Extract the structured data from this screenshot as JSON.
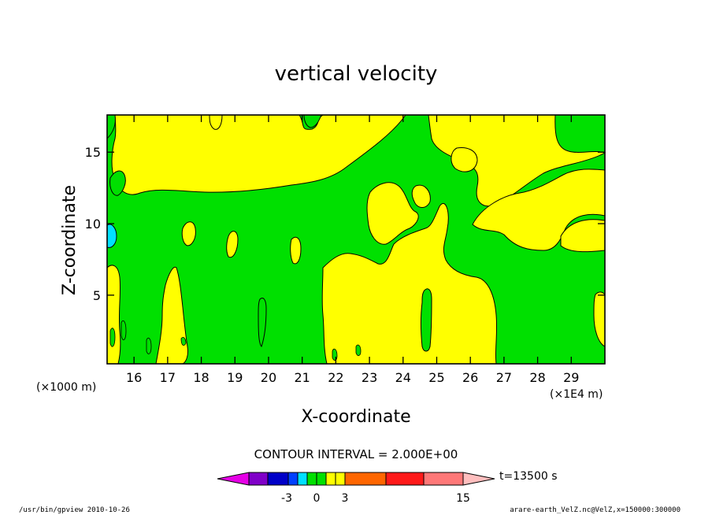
{
  "chart_data": {
    "type": "heatmap",
    "title": "vertical velocity",
    "xlabel": "X-coordinate",
    "ylabel": "Z-coordinate",
    "x_units_left": "(×1000 m)",
    "x_units_right": "(×1E4 m)",
    "xlim": [
      15.2,
      30.0
    ],
    "ylim": [
      0.2,
      17.6
    ],
    "x_ticks": [
      "16",
      "17",
      "18",
      "19",
      "20",
      "21",
      "22",
      "23",
      "24",
      "25",
      "26",
      "27",
      "28",
      "29"
    ],
    "y_ticks": [
      "5",
      "10",
      "15"
    ],
    "contour_interval_text": "CONTOUR INTERVAL = 2.000E+00",
    "time_label": "t=13500 s",
    "colorbar_labels": [
      "-3",
      "0",
      "3",
      "15"
    ],
    "colors": {
      "negative_deep": "#e600e6",
      "neg_4": "#8000c8",
      "neg_3": "#0000c8",
      "neg_2": "#0040ff",
      "neg_1": "#00e0ff",
      "near_zero_neg": "#00e000",
      "near_zero_pos": "#ffff00",
      "pos_orange": "#ff6600",
      "pos_red": "#ff1a1a",
      "pos_pink": "#ff7878",
      "pos_light": "#ffbebe"
    },
    "grid": false
  },
  "footer": {
    "left": "/usr/bin/gpview   2010-10-26",
    "right": "arare-earth_VelZ.nc@VelZ,x=150000:300000"
  }
}
